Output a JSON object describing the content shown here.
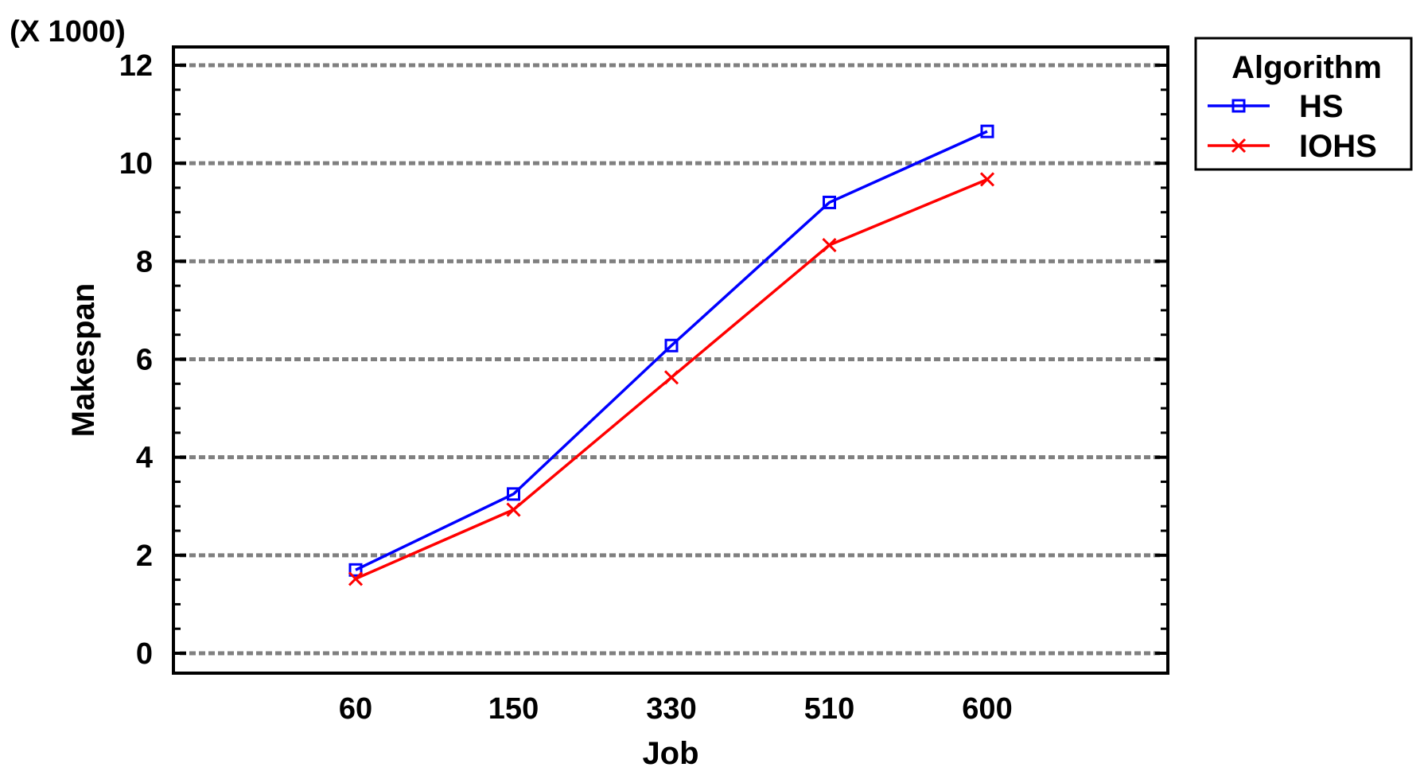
{
  "chart_data": {
    "type": "line",
    "multiplier_label": "(X 1000)",
    "xlabel": "Job",
    "ylabel": "Makespan",
    "categories": [
      "60",
      "150",
      "330",
      "510",
      "600"
    ],
    "yticks": [
      "0",
      "2",
      "4",
      "6",
      "8",
      "10",
      "12"
    ],
    "ylim": [
      0,
      12
    ],
    "grid": "horizontal dashed",
    "legend": {
      "title": "Algorithm",
      "placement": "outside top-right"
    },
    "series": [
      {
        "name": "HS",
        "values": [
          1.7,
          3.25,
          6.28,
          9.2,
          10.65
        ],
        "color": "#0000ff",
        "marker": "square"
      },
      {
        "name": "IOHS",
        "values": [
          1.52,
          2.93,
          5.63,
          8.33,
          9.67
        ],
        "color": "#ff0000",
        "marker": "x"
      }
    ]
  }
}
